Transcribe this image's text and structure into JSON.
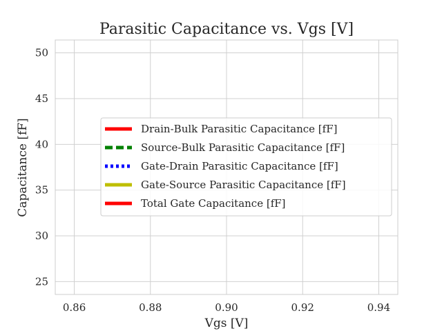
{
  "chart_data": {
    "type": "line",
    "title": "Parasitic Capacitance vs. Vgs [V]",
    "xlabel": "Vgs [V]",
    "ylabel": "Capacitance [fF]",
    "xlim": [
      0.855,
      0.945
    ],
    "ylim": [
      23.6,
      51.4
    ],
    "xticks": [
      0.86,
      0.88,
      0.9,
      0.92,
      0.94
    ],
    "xtick_labels": [
      "0.86",
      "0.88",
      "0.90",
      "0.92",
      "0.94"
    ],
    "yticks": [
      25,
      30,
      35,
      40,
      45,
      50
    ],
    "ytick_labels": [
      "25",
      "30",
      "35",
      "40",
      "45",
      "50"
    ],
    "grid": true,
    "legend_position": "center-right",
    "series": [
      {
        "name": "Drain-Bulk Parasitic Capacitance [fF]",
        "color": "#ff0000",
        "style": "solid",
        "x": [],
        "y": []
      },
      {
        "name": "Source-Bulk Parasitic Capacitance [fF]",
        "color": "#008000",
        "style": "dashed",
        "x": [],
        "y": []
      },
      {
        "name": "Gate-Drain Parasitic Capacitance [fF]",
        "color": "#0000ff",
        "style": "dotted",
        "x": [],
        "y": []
      },
      {
        "name": "Gate-Source Parasitic Capacitance [fF]",
        "color": "#bfbf00",
        "style": "solid",
        "x": [],
        "y": []
      },
      {
        "name": "Total Gate Capacitance [fF]",
        "color": "#ff0000",
        "style": "solid",
        "x": [],
        "y": []
      }
    ]
  }
}
